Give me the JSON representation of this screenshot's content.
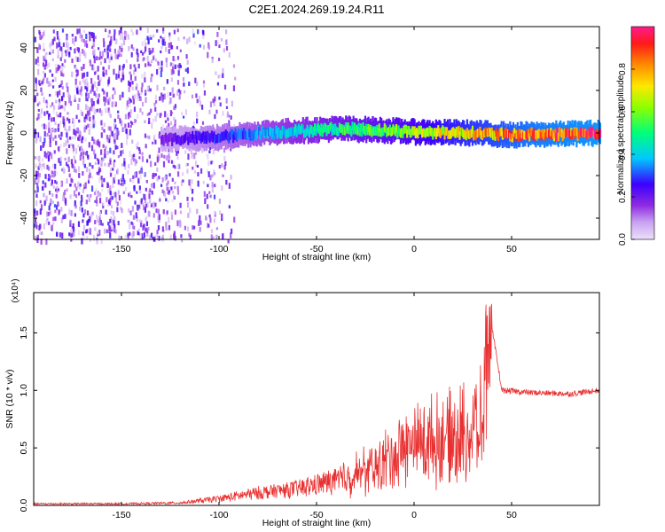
{
  "title": "C2E1.2024.269.19.24.R11",
  "chart_data": [
    {
      "type": "heatmap",
      "title": "C2E1.2024.269.19.24.R11",
      "xlabel": "Height of straight line (km)",
      "ylabel": "Frequency (Hz)",
      "xlim": [
        -195,
        95
      ],
      "ylim": [
        -50,
        50
      ],
      "x_ticks": [
        -150,
        -100,
        -50,
        0,
        50
      ],
      "y_ticks": [
        -40,
        -20,
        0,
        20,
        40
      ],
      "colorbar": {
        "label": "Normalized spectral amplitude",
        "range": [
          0,
          1
        ],
        "ticks": [
          0.0,
          0.2,
          0.4,
          0.6,
          0.8
        ],
        "tick_labels": [
          "0.0",
          "0.2",
          "0.4",
          "0.6",
          "0.8"
        ],
        "colormap": "rainbow (light violet → purple → blue → cyan → green → yellow → orange → red → magenta)"
      },
      "features": {
        "noise_region_x": [
          -195,
          -92
        ],
        "noise_amplitude": 0.15,
        "ridge_start_x": -130,
        "ridge_frequency_profile": [
          [
            -130,
            -3
          ],
          [
            -100,
            -2
          ],
          [
            -80,
            0
          ],
          [
            -60,
            1
          ],
          [
            -40,
            2
          ],
          [
            -20,
            1.5
          ],
          [
            0,
            0.5
          ],
          [
            30,
            0
          ],
          [
            50,
            -1
          ],
          [
            95,
            0
          ]
        ],
        "ridge_amplitude_profile": [
          [
            -130,
            0.2
          ],
          [
            -90,
            0.35
          ],
          [
            -50,
            0.5
          ],
          [
            -10,
            0.65
          ],
          [
            20,
            0.8
          ],
          [
            60,
            0.95
          ],
          [
            95,
            1.0
          ]
        ]
      }
    },
    {
      "type": "line",
      "xlabel": "Height of straight line (km)",
      "ylabel": "SNR (10 * v/v)",
      "y_multiplier": "(x10⁴)",
      "xlim": [
        -195,
        95
      ],
      "ylim": [
        0,
        1.85
      ],
      "x_ticks": [
        -150,
        -100,
        -50,
        0,
        50
      ],
      "y_ticks": [
        0.0,
        0.5,
        1.0,
        1.5
      ],
      "y_tick_labels": [
        "0.0",
        "0.5",
        "1.0",
        "1.5"
      ],
      "series": [
        {
          "color": "#e83030",
          "values_envelope": [
            [
              -195,
              0.02
            ],
            [
              -150,
              0.02
            ],
            [
              -120,
              0.03
            ],
            [
              -100,
              0.08
            ],
            [
              -80,
              0.15
            ],
            [
              -60,
              0.2
            ],
            [
              -40,
              0.3
            ],
            [
              -20,
              0.45
            ],
            [
              -10,
              0.6
            ],
            [
              0,
              0.75
            ],
            [
              20,
              0.8
            ],
            [
              35,
              0.95
            ],
            [
              38,
              1.75
            ],
            [
              45,
              1.0
            ],
            [
              60,
              0.98
            ],
            [
              80,
              0.97
            ],
            [
              95,
              1.0
            ]
          ]
        }
      ]
    }
  ]
}
